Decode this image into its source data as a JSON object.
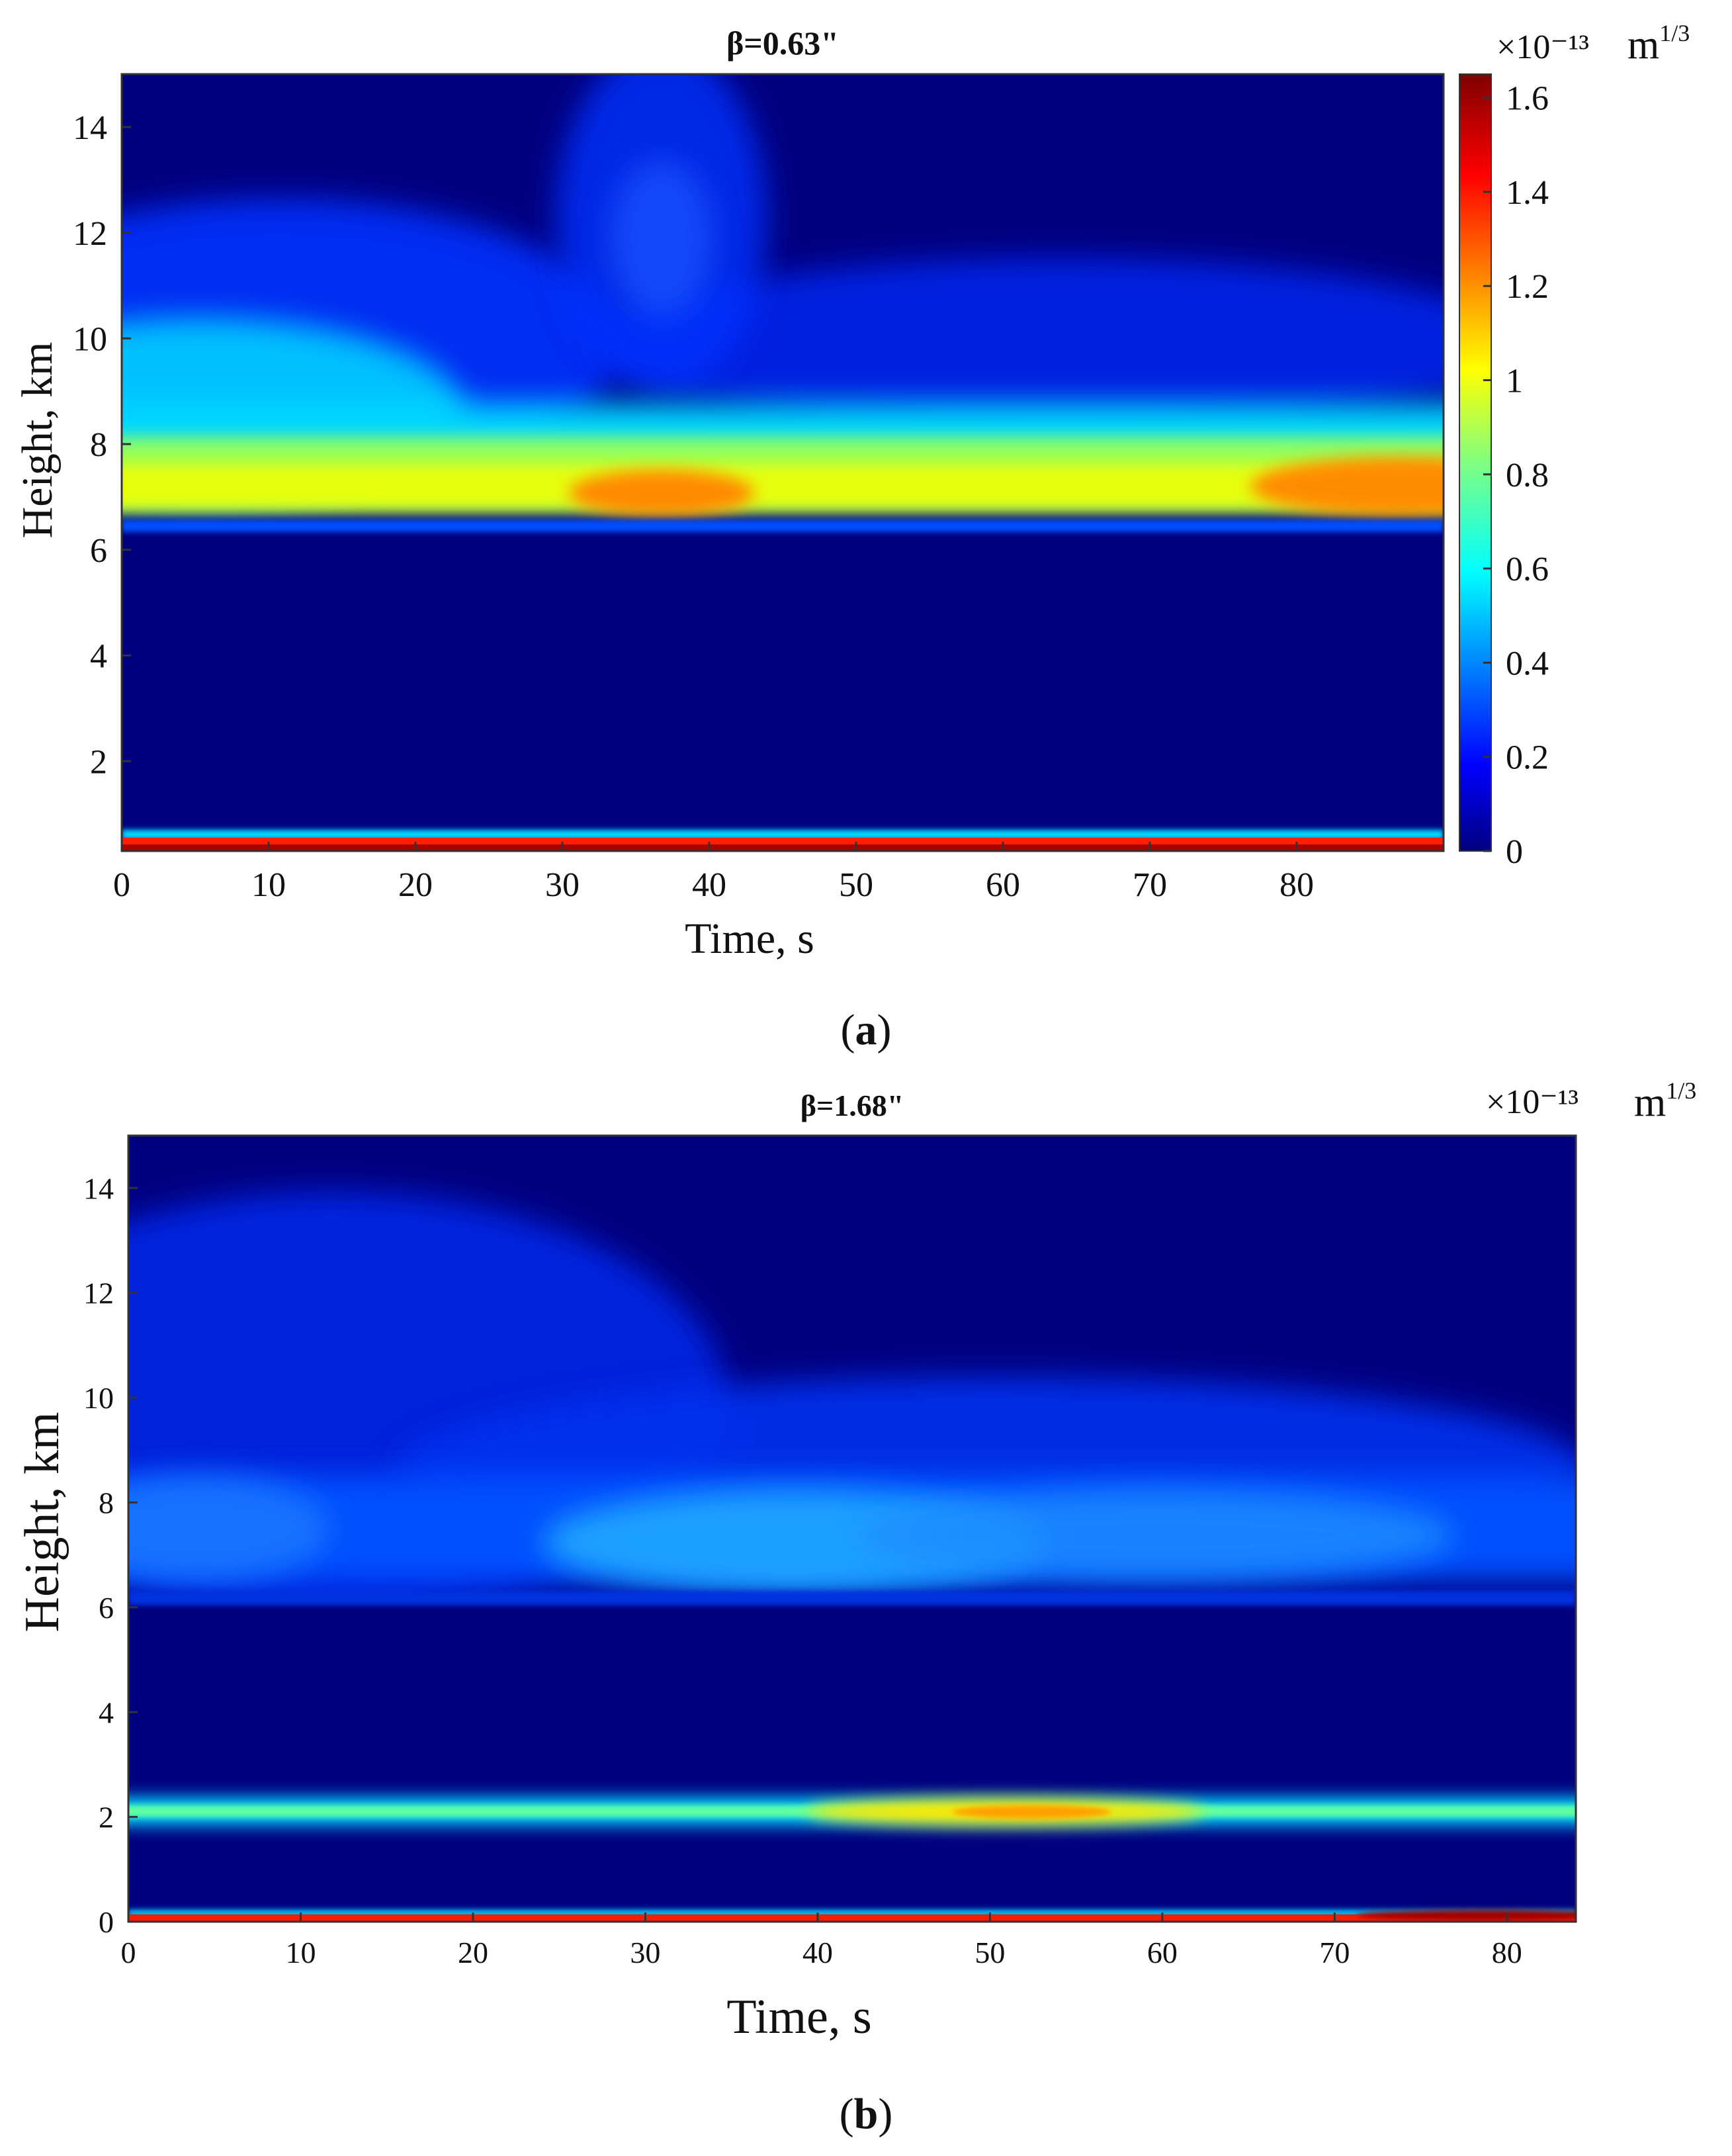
{
  "chart_data": [
    {
      "type": "heatmap",
      "panel_label": "a",
      "title": "β=0.63\"",
      "xlabel": "Time, s",
      "ylabel": "Height, km",
      "xlim": [
        0,
        90
      ],
      "ylim": [
        0.3,
        15
      ],
      "xticks": [
        0,
        10,
        20,
        30,
        40,
        50,
        60,
        70,
        80
      ],
      "yticks": [
        2,
        4,
        6,
        8,
        10,
        12,
        14
      ],
      "colorbar": {
        "range": [
          0,
          1.65
        ],
        "ticks": [
          0,
          0.2,
          0.4,
          0.6,
          0.8,
          1,
          1.2,
          1.4,
          1.6
        ],
        "multiplier": "×10⁻¹³",
        "unit": "m^1/3",
        "colormap": "jet"
      },
      "features": [
        {
          "height": 0.3,
          "time_range": [
            0,
            90
          ],
          "value": 1.6
        },
        {
          "height": 6.9,
          "time_range": [
            0,
            90
          ],
          "value": 1.0
        },
        {
          "height": 6.9,
          "time": 37,
          "value": 1.3
        },
        {
          "height": 7.0,
          "time": 88,
          "value": 1.25
        },
        {
          "height": 9.5,
          "time_range": [
            0,
            20
          ],
          "value": 0.5
        },
        {
          "height": 12,
          "time": 37,
          "value": 0.3
        }
      ]
    },
    {
      "type": "heatmap",
      "panel_label": "b",
      "title": "β=1.68\"",
      "xlabel": "Time, s",
      "ylabel": "Height, km",
      "xlim": [
        0,
        84
      ],
      "ylim": [
        0,
        15
      ],
      "xticks": [
        0,
        10,
        20,
        30,
        40,
        50,
        60,
        70,
        80
      ],
      "yticks": [
        0,
        2,
        4,
        6,
        8,
        10,
        12,
        14
      ],
      "colorbar": {
        "multiplier": "×10⁻¹³",
        "unit": "m^1/3",
        "colormap": "jet"
      },
      "features": [
        {
          "height": 0.15,
          "time_range": [
            0,
            84
          ],
          "value": 1.6
        },
        {
          "height": 2.0,
          "time_range": [
            0,
            84
          ],
          "value": 0.6
        },
        {
          "height": 2.0,
          "time": 52,
          "value": 1.1
        },
        {
          "height": 7.0,
          "time_range": [
            0,
            84
          ],
          "value": 0.35
        },
        {
          "height": 7.0,
          "time": 40,
          "value": 0.5
        },
        {
          "height": 10,
          "time_range": [
            0,
            20
          ],
          "value": 0.2
        }
      ]
    }
  ]
}
